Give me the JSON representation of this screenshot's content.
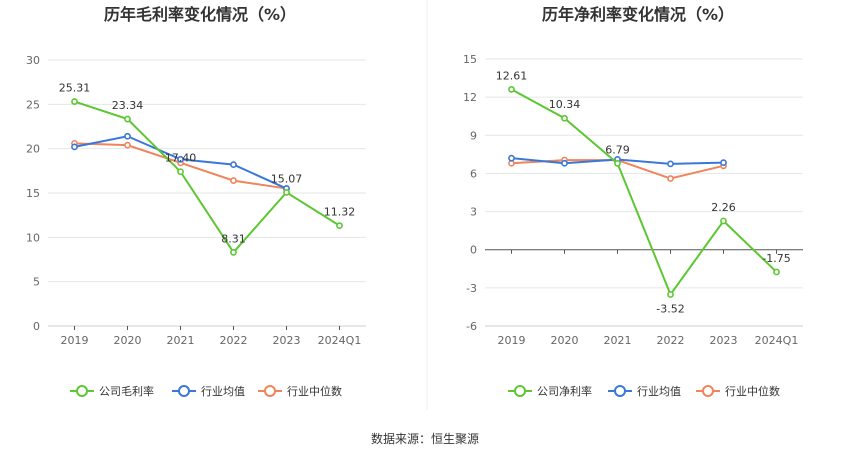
{
  "source_text": "数据来源：恒生聚源",
  "chart_data": [
    {
      "type": "line",
      "title": "历年毛利率变化情况（%）",
      "categories": [
        "2019",
        "2020",
        "2021",
        "2022",
        "2023",
        "2024Q1"
      ],
      "ylim": [
        0,
        30
      ],
      "yticks": [
        0,
        5,
        10,
        15,
        20,
        25,
        30
      ],
      "grid": true,
      "legend_placement": "bottom",
      "series": [
        {
          "name": "公司毛利率",
          "color": "#5cc732",
          "values": [
            25.31,
            23.34,
            17.4,
            8.31,
            15.07,
            11.32
          ],
          "labels": [
            "25.31",
            "23.34",
            "17.40",
            "8.31",
            "15.07",
            "11.32"
          ]
        },
        {
          "name": "行业均值",
          "color": "#3a78d8",
          "values": [
            20.2,
            21.4,
            18.8,
            18.2,
            15.5,
            null
          ],
          "labels": []
        },
        {
          "name": "行业中位数",
          "color": "#f0845a",
          "values": [
            20.6,
            20.4,
            18.4,
            16.4,
            15.5,
            null
          ],
          "labels": []
        }
      ]
    },
    {
      "type": "line",
      "title": "历年净利率变化情况（%）",
      "categories": [
        "2019",
        "2020",
        "2021",
        "2022",
        "2023",
        "2024Q1"
      ],
      "ylim": [
        -6,
        15
      ],
      "yticks": [
        -6,
        -3,
        0,
        3,
        6,
        9,
        12,
        15
      ],
      "grid": true,
      "legend_placement": "bottom",
      "series": [
        {
          "name": "公司净利率",
          "color": "#5cc732",
          "values": [
            12.61,
            10.34,
            6.79,
            -3.52,
            2.26,
            -1.75
          ],
          "labels": [
            "12.61",
            "10.34",
            "6.79",
            "-3.52",
            "2.26",
            "-1.75"
          ]
        },
        {
          "name": "行业均值",
          "color": "#3a78d8",
          "values": [
            7.2,
            6.8,
            7.1,
            6.75,
            6.85,
            null
          ],
          "labels": []
        },
        {
          "name": "行业中位数",
          "color": "#f0845a",
          "values": [
            6.8,
            7.05,
            7.05,
            5.6,
            6.6,
            null
          ],
          "labels": []
        }
      ]
    }
  ]
}
